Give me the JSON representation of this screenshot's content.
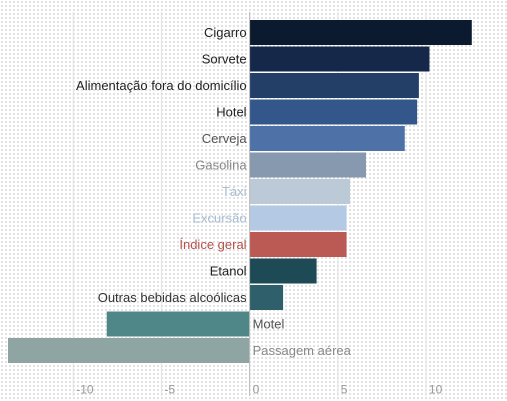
{
  "chart_data": {
    "type": "bar",
    "orientation": "horizontal",
    "categories": [
      "Cigarro",
      "Sorvete",
      "Alimentação fora do domicílio",
      "Hotel",
      "Cerveja",
      "Gasolina",
      "Táxi",
      "Excursão",
      "Índice geral",
      "Etanol",
      "Outras bebidas alcoólicas",
      "Motel",
      "Passagem aérea"
    ],
    "values": [
      12.6,
      10.2,
      9.6,
      9.5,
      8.8,
      6.6,
      5.7,
      5.5,
      5.5,
      3.8,
      1.9,
      -8.1,
      -13.7
    ],
    "colors": [
      "#0b1a2e",
      "#15284a",
      "#233f68",
      "#34578b",
      "#4e72a8",
      "#8799ae",
      "#bccad8",
      "#b4c9e3",
      "#bb5a55",
      "#1d4a55",
      "#2e5f6b",
      "#4f8688",
      "#8fa5a4"
    ],
    "label_colors": [
      "#222222",
      "#222222",
      "#222222",
      "#222222",
      "#555555",
      "#888888",
      "#a9bed3",
      "#a9bed3",
      "#b5524c",
      "#222222",
      "#333333",
      "#555555",
      "#8a8a8a"
    ],
    "x_ticks": [
      -10,
      -5,
      0,
      5,
      10
    ],
    "x_tick_labels": [
      "-10",
      "-5",
      "0",
      "5",
      "10"
    ],
    "xlim": [
      -13.7,
      14.2
    ],
    "grid": "vertical",
    "title": "",
    "xlabel": "",
    "ylabel": ""
  }
}
